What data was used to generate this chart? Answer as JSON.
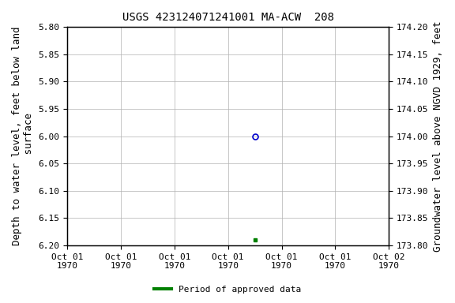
{
  "title": "USGS 423124071241001 MA-ACW  208",
  "ylabel_left": "Depth to water level, feet below land\n surface",
  "ylabel_right": "Groundwater level above NGVD 1929, feet",
  "ylim_left": [
    5.8,
    6.2
  ],
  "ylim_right": [
    174.2,
    173.8
  ],
  "yticks_left": [
    5.8,
    5.85,
    5.9,
    5.95,
    6.0,
    6.05,
    6.1,
    6.15,
    6.2
  ],
  "yticks_right": [
    174.2,
    174.15,
    174.1,
    174.05,
    174.0,
    173.95,
    173.9,
    173.85,
    173.8
  ],
  "data_blue_circle": {
    "x": 3.5,
    "value": 6.0
  },
  "data_green_square": {
    "x": 3.5,
    "value": 6.19
  },
  "background_color": "#ffffff",
  "grid_color": "#b0b0b0",
  "axis_color": "#000000",
  "blue_marker_color": "#0000cc",
  "green_marker_color": "#008000",
  "font_family": "monospace",
  "title_fontsize": 10,
  "axis_label_fontsize": 9,
  "tick_label_fontsize": 8,
  "legend_label": "Period of approved data",
  "xlim": [
    0,
    6
  ],
  "xtick_positions": [
    0,
    1,
    2,
    3,
    4,
    5,
    6
  ],
  "xtick_labels": [
    "Oct 01\n1970",
    "Oct 01\n1970",
    "Oct 01\n1970",
    "Oct 01\n1970",
    "Oct 01\n1970",
    "Oct 01\n1970",
    "Oct 02\n1970"
  ]
}
